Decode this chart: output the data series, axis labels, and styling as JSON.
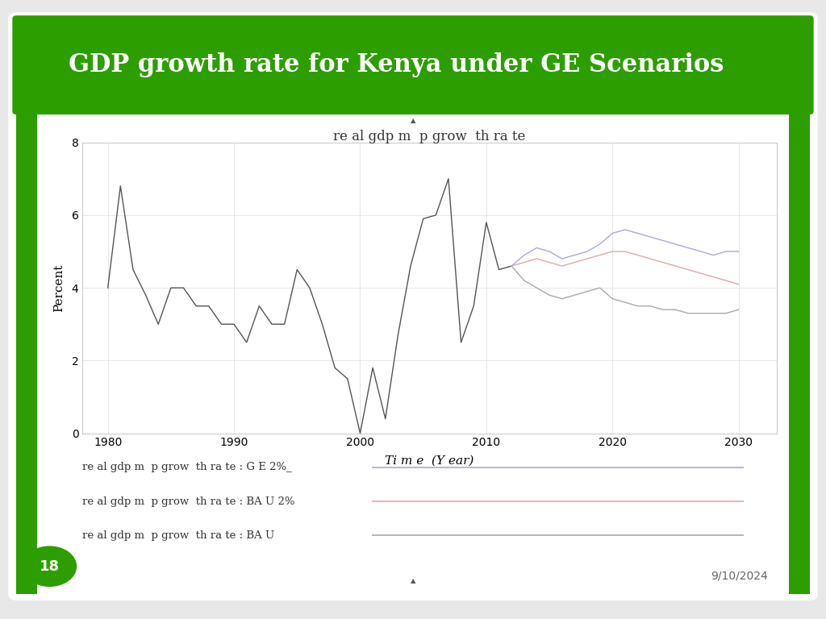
{
  "title": "GDP growth rate for Kenya under GE Scenarios",
  "chart_title": "re al gdp m  p grow  th ra te",
  "xlabel": "Ti m e  (Y ear)",
  "ylabel": "Percent",
  "background_color": "#e8e8e8",
  "slide_bg": "#ffffff",
  "header_color": "#2d9e00",
  "header_text_color": "#ffffff",
  "slide_number": "18",
  "date": "9/10/2024",
  "legend_labels": [
    "re al gdp m  p grow  th ra te : G E 2%_",
    "re al gdp m  p grow  th ra te : BA U 2%",
    "re al gdp m  p grow  th ra te : BA U"
  ],
  "line_colors_ge2": "#aaaadd",
  "line_colors_bau2": "#ddaaaa",
  "line_colors_bau": "#aaaaaa",
  "historical_color": "#555555",
  "ylim": [
    0,
    8
  ],
  "yticks": [
    0,
    2,
    4,
    6,
    8
  ],
  "xticks": [
    1980,
    1990,
    2000,
    2010,
    2020,
    2030
  ],
  "historical_years": [
    1980,
    1981,
    1982,
    1983,
    1984,
    1985,
    1986,
    1987,
    1988,
    1989,
    1990,
    1991,
    1992,
    1993,
    1994,
    1995,
    1996,
    1997,
    1998,
    1999,
    2000,
    2001,
    2002,
    2003,
    2004,
    2005,
    2006,
    2007,
    2008,
    2009,
    2010,
    2011,
    2012
  ],
  "historical_values": [
    4.0,
    6.8,
    4.5,
    3.8,
    3.0,
    4.0,
    4.0,
    3.5,
    3.5,
    3.0,
    3.0,
    2.5,
    3.5,
    3.0,
    3.0,
    4.5,
    4.0,
    3.0,
    1.8,
    1.5,
    0.0,
    1.8,
    0.4,
    2.7,
    4.6,
    5.9,
    6.0,
    7.0,
    2.5,
    3.5,
    5.8,
    4.5,
    4.6
  ],
  "forecast_years": [
    2012,
    2013,
    2014,
    2015,
    2016,
    2017,
    2018,
    2019,
    2020,
    2021,
    2022,
    2023,
    2024,
    2025,
    2026,
    2027,
    2028,
    2029,
    2030
  ],
  "forecast_ge2": [
    4.6,
    4.9,
    5.1,
    5.0,
    4.8,
    4.9,
    5.0,
    5.2,
    5.5,
    5.6,
    5.5,
    5.4,
    5.3,
    5.2,
    5.1,
    5.0,
    4.9,
    5.0,
    5.0
  ],
  "forecast_bau2": [
    4.6,
    4.7,
    4.8,
    4.7,
    4.6,
    4.7,
    4.8,
    4.9,
    5.0,
    5.0,
    4.9,
    4.8,
    4.7,
    4.6,
    4.5,
    4.4,
    4.3,
    4.2,
    4.1
  ],
  "forecast_bau": [
    4.6,
    4.2,
    4.0,
    3.8,
    3.7,
    3.8,
    3.9,
    4.0,
    3.7,
    3.6,
    3.5,
    3.5,
    3.4,
    3.4,
    3.3,
    3.3,
    3.3,
    3.3,
    3.4
  ]
}
